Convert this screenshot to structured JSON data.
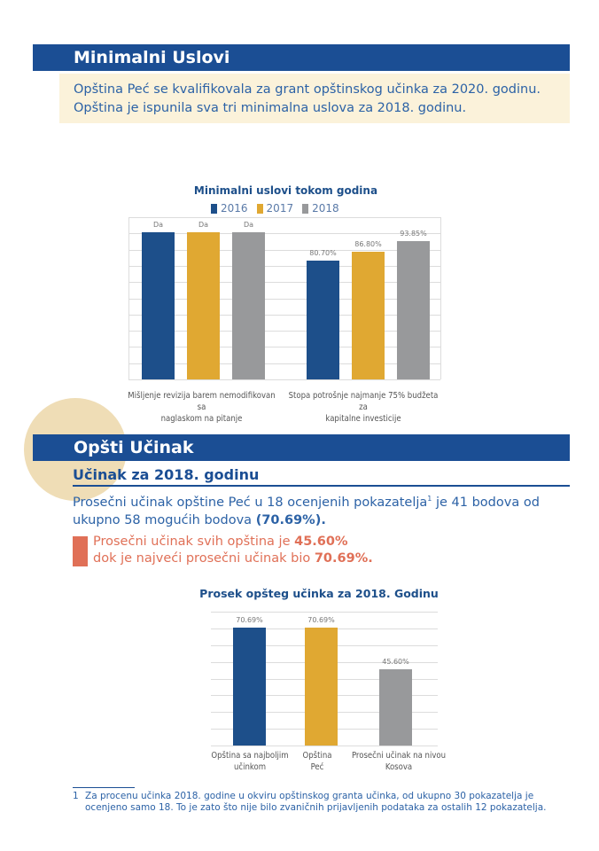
{
  "section1": {
    "title": "Minimalni Uslovi",
    "intro_line1": "Opština Peć se kvalifikovala za grant opštinskog učinka za 2020. godinu.",
    "intro_line2": "Opština je ispunila sva tri minimalna uslova za 2018. godinu."
  },
  "chart1": {
    "title": "Minimalni uslovi tokom godina",
    "legend": [
      "2016",
      "2017",
      "2018"
    ],
    "groups": [
      {
        "label_line1": "Mišljenje revizija barem nemodifikovan sa",
        "label_line2": "naglaskom na pitanje",
        "bar_labels": [
          "Da",
          "Da",
          "Da"
        ]
      },
      {
        "label_line1": "Stopa potrošnje najmanje 75% budžeta za",
        "label_line2": "kapitalne investicije",
        "bar_labels": [
          "80.70%",
          "86.80%",
          "93.85%"
        ]
      }
    ]
  },
  "section2": {
    "title": "Opšti Učinak",
    "subtitle": "Učinak za 2018. godinu",
    "para_line1_a": "Prosečni učinak opštine Peć u 18 ocenjenih pokazatelja",
    "para_sup": "1",
    "para_line1_b": " je 41 bodova od",
    "para_line2_a": "ukupno 58 mogućih bodova ",
    "para_line2_b": "(70.69%).",
    "callout_line1_a": "Prosečni učinak svih opština je ",
    "callout_line1_b": "45.60%",
    "callout_line2_a": "dok je najveći prosečni učinak bio ",
    "callout_line2_b": "70.69%."
  },
  "chart2": {
    "title": "Prosek opšteg učinka za 2018. Godinu",
    "bars": [
      {
        "label": "70.69%",
        "cat_line1": "Opština sa najboljim",
        "cat_line2": "učinkom"
      },
      {
        "label": "70.69%",
        "cat_line1": "Opština",
        "cat_line2": "Peć"
      },
      {
        "label": "45.60%",
        "cat_line1": "Prosečni učinak na nivou",
        "cat_line2": "Kosova"
      }
    ]
  },
  "footnote": {
    "num": "1",
    "text": "Za procenu učinka 2018. godine u okviru opštinskog granta učinka, od ukupno 30 pokazatelja je ocenjeno samo 18. To je zato što nije bilo zvaničnih prijavljenih podataka za ostalih 12 pokazatelja."
  },
  "colors": {
    "brand_blue": "#1b4e94",
    "series_2016": "#1d4f8a",
    "series_2017": "#e0a832",
    "series_2018": "#98999b",
    "callout_red": "#e07057",
    "intro_bg": "#fbf2da",
    "circle_beige": "#efddb6"
  },
  "chart_data": [
    {
      "type": "bar",
      "title": "Minimalni uslovi tokom godina",
      "categories": [
        "Mišljenje revizija barem nemodifikovan sa naglaskom na pitanje",
        "Stopa potrošnje najmanje 75% budžeta za kapitalne investicije"
      ],
      "series": [
        {
          "name": "2016",
          "values": [
            100,
            80.7
          ],
          "data_labels": [
            "Da",
            "80.70%"
          ]
        },
        {
          "name": "2017",
          "values": [
            100,
            86.8
          ],
          "data_labels": [
            "Da",
            "86.80%"
          ]
        },
        {
          "name": "2018",
          "values": [
            100,
            93.85
          ],
          "data_labels": [
            "Da",
            "93.85%"
          ]
        }
      ],
      "ylim": [
        0,
        110
      ],
      "grid": true,
      "legend": "top"
    },
    {
      "type": "bar",
      "title": "Prosek opšteg učinka za 2018. Godinu",
      "categories": [
        "Opština sa najboljim učinkom",
        "Opština Peć",
        "Prosečni učinak na nivou Kosova"
      ],
      "values": [
        70.69,
        70.69,
        45.6
      ],
      "data_labels": [
        "70.69%",
        "70.69%",
        "45.60%"
      ],
      "ylim": [
        0,
        80
      ],
      "grid": true
    }
  ]
}
